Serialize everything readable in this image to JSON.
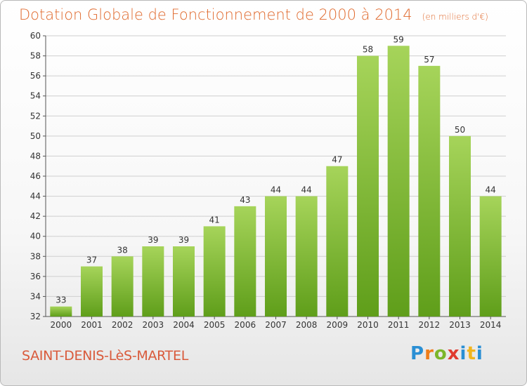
{
  "header": {
    "title": "Dotation Globale de Fonctionnement de 2000 à 2014",
    "subtitle": "(en milliers d'€)"
  },
  "footer": {
    "commune": "SAINT-DENIS-LèS-MARTEL",
    "logo_letters": [
      "P",
      "r",
      "o",
      "x",
      "i",
      "t",
      "i"
    ]
  },
  "colors": {
    "bar_top": "#a6d45a",
    "bar_bottom": "#5f9e1a",
    "title": "#e06a2e",
    "grid": "#cfcfcf"
  },
  "chart_data": {
    "type": "bar",
    "title": "Dotation Globale de Fonctionnement de 2000 à 2014",
    "subtitle": "(en milliers d'€)",
    "xlabel": "",
    "ylabel": "",
    "categories": [
      "2000",
      "2001",
      "2002",
      "2003",
      "2004",
      "2005",
      "2006",
      "2007",
      "2008",
      "2009",
      "2010",
      "2011",
      "2012",
      "2013",
      "2014"
    ],
    "values": [
      33,
      37,
      38,
      39,
      39,
      41,
      43,
      44,
      44,
      47,
      58,
      59,
      57,
      50,
      44
    ],
    "ylim": [
      32,
      60
    ],
    "yticks": [
      32,
      34,
      36,
      38,
      40,
      42,
      44,
      46,
      48,
      50,
      52,
      54,
      56,
      58,
      60
    ],
    "grid": true,
    "legend": "none"
  }
}
